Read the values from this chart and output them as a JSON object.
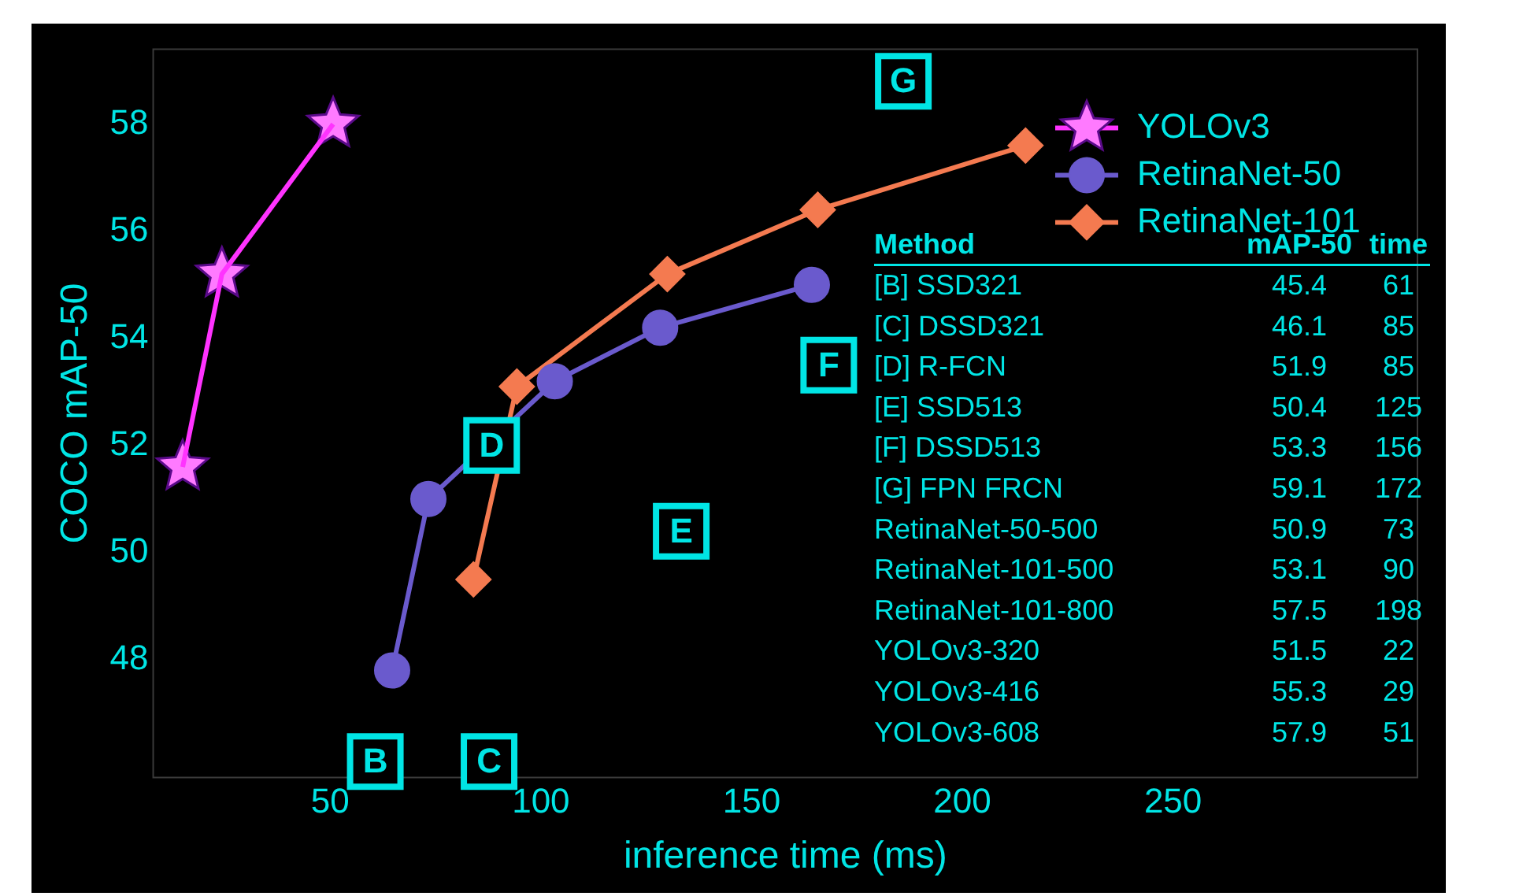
{
  "chart_data": {
    "type": "line",
    "xlabel": "inference time (ms)",
    "ylabel": "COCO mAP-50",
    "xlim": [
      8,
      308
    ],
    "ylim": [
      45.8,
      59.4
    ],
    "xticks": [
      50,
      100,
      150,
      200,
      250
    ],
    "yticks": [
      48,
      50,
      52,
      54,
      56,
      58
    ],
    "legend": "top right",
    "series": [
      {
        "name": "YOLOv3",
        "color": "#ff33ff",
        "marker": "star",
        "x": [
          15,
          24.3,
          50.7
        ],
        "values": [
          51.6,
          55.2,
          58
        ]
      },
      {
        "name": "RetinaNet-50",
        "color": "#6a5acd",
        "marker": "circle",
        "x": [
          64.7,
          73.3,
          103.3,
          128.3,
          164.3
        ],
        "values": [
          47.8,
          51,
          53.2,
          54.2,
          55
        ]
      },
      {
        "name": "RetinaNet-101",
        "color": "#f47a50",
        "marker": "diamond",
        "x": [
          84,
          94.3,
          130,
          165.7,
          215
        ],
        "values": [
          49.5,
          53.1,
          55.2,
          56.4,
          57.6
        ]
      }
    ],
    "annotations": [
      {
        "text": "B",
        "x": 60.7,
        "y": 46.1
      },
      {
        "text": "C",
        "x": 87.7,
        "y": 46.1
      },
      {
        "text": "D",
        "x": 88.3,
        "y": 52
      },
      {
        "text": "E",
        "x": 133.3,
        "y": 50.4
      },
      {
        "text": "F",
        "x": 168.3,
        "y": 53.5
      },
      {
        "text": "G",
        "x": 186,
        "y": 58.8
      },
      "Method",
      "mAP-50",
      "time",
      "[B] SSD321",
      "45.4",
      "61",
      "[C] DSSD321",
      "46.1",
      "85",
      "[D] R-FCN",
      "51.9",
      "85",
      "[E] SSD513",
      "50.4",
      "125",
      "[F] DSSD513",
      "53.3",
      "156",
      "[G] FPN FRCN",
      "59.1",
      "172",
      "RetinaNet-50-500",
      "50.9",
      "73",
      "RetinaNet-101-500",
      "53.1",
      "90",
      "RetinaNet-101-800",
      "57.5",
      "198",
      "YOLOv3-320",
      "51.5",
      "22",
      "YOLOv3-416",
      "55.3",
      "29",
      "YOLOv3-608",
      "57.9",
      "51"
    ]
  }
}
